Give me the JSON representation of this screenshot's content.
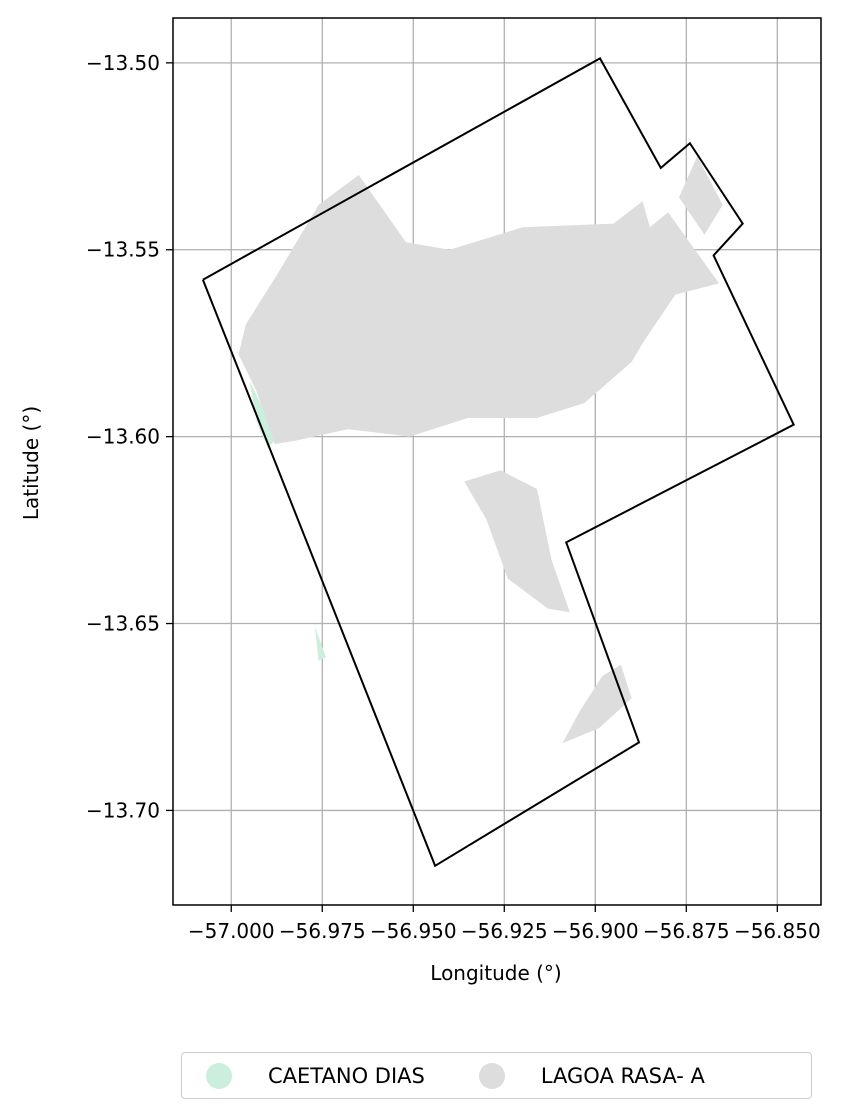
{
  "chart_data": {
    "type": "map",
    "xlabel": "Longitude (°)",
    "ylabel": "Latitude (°)",
    "xlim": [
      -57.016,
      -56.838
    ],
    "ylim": [
      -13.7253,
      -13.488
    ],
    "grid": true,
    "x_ticks": [
      -57.0,
      -56.975,
      -56.95,
      -56.925,
      -56.9,
      -56.875,
      -56.85
    ],
    "x_tick_labels": [
      "−57.000",
      "−56.975",
      "−56.950",
      "−56.925",
      "−56.900",
      "−56.875",
      "−56.850"
    ],
    "y_ticks": [
      -13.5,
      -13.55,
      -13.6,
      -13.65,
      -13.7
    ],
    "y_tick_labels": [
      "−13.50",
      "−13.55",
      "−13.60",
      "−13.65",
      "−13.70"
    ],
    "boundary": [
      [
        -57.0078,
        -13.558
      ],
      [
        -56.8987,
        -13.4988
      ],
      [
        -56.882,
        -13.5281
      ],
      [
        -56.874,
        -13.5215
      ],
      [
        -56.8595,
        -13.543
      ],
      [
        -56.8675,
        -13.5515
      ],
      [
        -56.8455,
        -13.5968
      ],
      [
        -56.908,
        -13.6283
      ],
      [
        -56.888,
        -13.6818
      ],
      [
        -56.944,
        -13.7148
      ],
      [
        -57.0078,
        -13.558
      ]
    ],
    "series": [
      {
        "name": "CAETANO DIAS",
        "color": "#cceedd",
        "polygons": [
          [
            [
              -56.995,
              -13.585
            ],
            [
              -56.992,
              -13.591
            ],
            [
              -56.988,
              -13.601
            ],
            [
              -56.99,
              -13.603
            ],
            [
              -56.993,
              -13.596
            ]
          ],
          [
            [
              -56.978,
              -13.648
            ],
            [
              -56.974,
              -13.659
            ],
            [
              -56.976,
              -13.66
            ],
            [
              -56.977,
              -13.651
            ]
          ]
        ]
      },
      {
        "name": "LAGOA RASA- A",
        "color": "#dddddd",
        "polygons": [
          [
            [
              -56.996,
              -13.57
            ],
            [
              -56.987,
              -13.556
            ],
            [
              -56.976,
              -13.538
            ],
            [
              -56.965,
              -13.53
            ],
            [
              -56.952,
              -13.548
            ],
            [
              -56.94,
              -13.55
            ],
            [
              -56.92,
              -13.544
            ],
            [
              -56.895,
              -13.543
            ],
            [
              -56.887,
              -13.537
            ],
            [
              -56.885,
              -13.544
            ],
            [
              -56.88,
              -13.54
            ],
            [
              -56.866,
              -13.559
            ],
            [
              -56.878,
              -13.562
            ],
            [
              -56.887,
              -13.575
            ],
            [
              -56.89,
              -13.58
            ],
            [
              -56.903,
              -13.591
            ],
            [
              -56.916,
              -13.595
            ],
            [
              -56.935,
              -13.595
            ],
            [
              -56.951,
              -13.6
            ],
            [
              -56.968,
              -13.598
            ],
            [
              -56.982,
              -13.601
            ],
            [
              -56.988,
              -13.602
            ],
            [
              -56.993,
              -13.588
            ],
            [
              -56.998,
              -13.578
            ]
          ],
          [
            [
              -56.936,
              -13.612
            ],
            [
              -56.93,
              -13.622
            ],
            [
              -56.924,
              -13.638
            ],
            [
              -56.913,
              -13.646
            ],
            [
              -56.907,
              -13.647
            ],
            [
              -56.912,
              -13.633
            ],
            [
              -56.916,
              -13.614
            ],
            [
              -56.926,
              -13.609
            ]
          ],
          [
            [
              -56.909,
              -13.682
            ],
            [
              -56.899,
              -13.678
            ],
            [
              -56.89,
              -13.67
            ],
            [
              -56.893,
              -13.661
            ],
            [
              -56.898,
              -13.664
            ],
            [
              -56.904,
              -13.673
            ]
          ],
          [
            [
              -56.872,
              -13.525
            ],
            [
              -56.865,
              -13.538
            ],
            [
              -56.87,
              -13.546
            ],
            [
              -56.877,
              -13.536
            ]
          ]
        ]
      }
    ],
    "legend": {
      "position": "bottom-center",
      "entries": [
        {
          "label": "CAETANO DIAS",
          "color": "#cceedd"
        },
        {
          "label": "LAGOA RASA- A",
          "color": "#dddddd"
        }
      ]
    }
  }
}
